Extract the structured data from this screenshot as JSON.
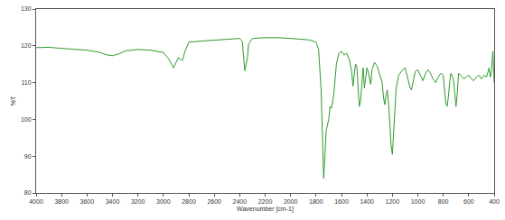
{
  "chart_data": {
    "type": "line",
    "x_label": "Wavenumber [cm-1]",
    "y_label": "%T",
    "color": "#2e9a2e",
    "grid": false,
    "x": [
      4000,
      3900,
      3800,
      3700,
      3600,
      3500,
      3450,
      3400,
      3350,
      3300,
      3200,
      3100,
      3050,
      3000,
      2960,
      2930,
      2920,
      2900,
      2880,
      2860,
      2850,
      2830,
      2800,
      2700,
      2600,
      2500,
      2400,
      2380,
      2370,
      2360,
      2350,
      2340,
      2330,
      2300,
      2200,
      2100,
      2000,
      1900,
      1850,
      1800,
      1780,
      1760,
      1750,
      1740,
      1730,
      1720,
      1700,
      1690,
      1680,
      1670,
      1660,
      1640,
      1620,
      1600,
      1580,
      1560,
      1540,
      1520,
      1510,
      1500,
      1490,
      1480,
      1470,
      1460,
      1450,
      1440,
      1430,
      1420,
      1410,
      1400,
      1390,
      1380,
      1370,
      1360,
      1340,
      1320,
      1300,
      1280,
      1270,
      1260,
      1250,
      1240,
      1230,
      1220,
      1210,
      1200,
      1190,
      1180,
      1170,
      1150,
      1120,
      1100,
      1080,
      1060,
      1050,
      1040,
      1020,
      1000,
      980,
      960,
      940,
      920,
      900,
      880,
      860,
      840,
      820,
      800,
      790,
      780,
      770,
      760,
      750,
      740,
      720,
      710,
      700,
      690,
      680,
      660,
      640,
      620,
      600,
      580,
      560,
      540,
      520,
      500,
      480,
      460,
      450,
      440,
      430,
      420,
      410,
      400
    ],
    "values": [
      119.5,
      119.6,
      119.3,
      119.0,
      118.8,
      118.2,
      117.6,
      117.3,
      117.8,
      118.6,
      119.0,
      118.8,
      118.5,
      118.2,
      116.5,
      114.5,
      114.0,
      115.5,
      116.8,
      116.2,
      116.0,
      118.5,
      121.0,
      121.3,
      121.5,
      121.8,
      122.0,
      121.2,
      117.5,
      113.2,
      115.0,
      116.5,
      120.5,
      122.0,
      122.2,
      122.2,
      122.0,
      121.8,
      121.6,
      121.0,
      119.0,
      108.0,
      96.0,
      84.0,
      90.0,
      97.0,
      100.0,
      103.5,
      103.0,
      104.5,
      107.0,
      115.0,
      118.0,
      118.5,
      117.5,
      118.0,
      116.5,
      113.0,
      109.0,
      112.5,
      115.0,
      114.5,
      110.0,
      103.5,
      105.0,
      110.0,
      114.0,
      108.5,
      111.0,
      114.0,
      113.0,
      111.5,
      109.5,
      113.5,
      115.5,
      114.5,
      112.0,
      110.0,
      106.0,
      104.0,
      106.5,
      108.0,
      104.5,
      98.0,
      93.0,
      90.5,
      96.0,
      104.0,
      108.5,
      112.0,
      113.5,
      114.0,
      111.0,
      108.5,
      108.0,
      110.0,
      113.0,
      113.5,
      112.0,
      110.5,
      112.5,
      113.5,
      112.5,
      111.0,
      110.0,
      111.5,
      112.5,
      112.0,
      108.0,
      104.5,
      103.5,
      106.0,
      110.0,
      112.5,
      111.0,
      107.0,
      103.5,
      107.0,
      112.5,
      112.0,
      111.0,
      111.5,
      112.0,
      111.0,
      110.5,
      111.5,
      112.0,
      111.0,
      112.0,
      111.5,
      113.0,
      114.0,
      111.5,
      113.5,
      118.5,
      110.0
    ],
    "xlim": [
      4000,
      400
    ],
    "xticks": [
      4000,
      3800,
      3600,
      3400,
      3200,
      3000,
      2800,
      2600,
      2400,
      2200,
      2000,
      1800,
      1600,
      1400,
      1200,
      1000,
      800,
      600,
      400
    ],
    "ylim": [
      80,
      130
    ],
    "yticks": [
      80,
      90,
      100,
      110,
      120,
      130
    ]
  }
}
